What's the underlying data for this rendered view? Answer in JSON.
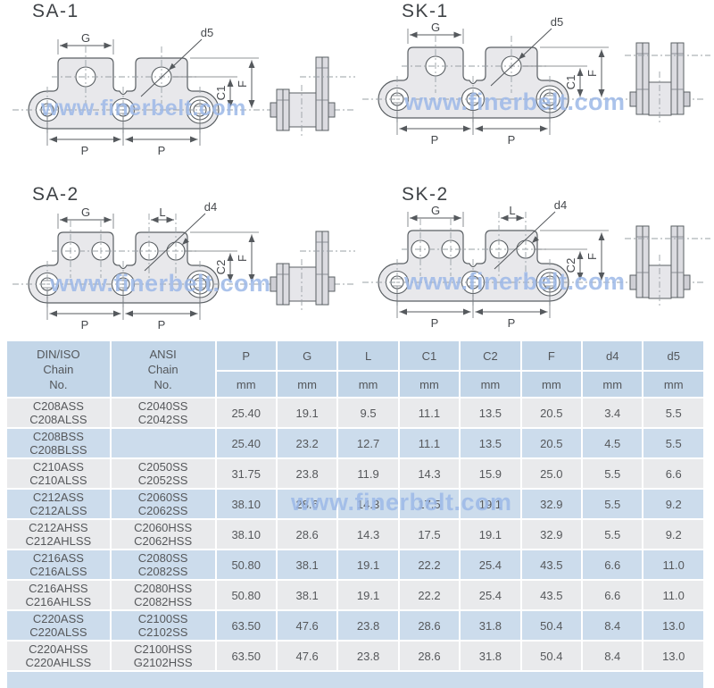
{
  "watermark": {
    "text": "www.finerbelt.com",
    "color": "#9db9e8"
  },
  "colors": {
    "header_bg": "#c3d6e8",
    "row_blue": "#ccdcec",
    "row_gray": "#e9eaec",
    "drawing_line": "#5a5f63",
    "plate_fill": "#e8e8eb"
  },
  "diagrams": [
    {
      "title": "SA-1",
      "labels": {
        "g": "G",
        "hole": "d5",
        "c": "C1",
        "f": "F",
        "p_left": "P",
        "p_right": "P"
      }
    },
    {
      "title": "SK-1",
      "labels": {
        "g": "G",
        "hole": "d5",
        "c": "C1",
        "f": "F",
        "p_left": "P",
        "p_right": "P"
      }
    },
    {
      "title": "SA-2",
      "labels": {
        "g": "G",
        "l": "L",
        "hole": "d4",
        "c": "C2",
        "f": "F",
        "p_left": "P",
        "p_right": "P"
      }
    },
    {
      "title": "SK-2",
      "labels": {
        "g": "G",
        "l": "L",
        "hole": "d4",
        "c": "C2",
        "f": "F",
        "p_left": "P",
        "p_right": "P"
      }
    }
  ],
  "table": {
    "header": {
      "din_iso": [
        "DIN/ISO",
        "Chain",
        "No."
      ],
      "ansi": [
        "ANSI",
        "Chain",
        "No."
      ],
      "dims": [
        "P",
        "G",
        "L",
        "C1",
        "C2",
        "F",
        "d4",
        "d5"
      ],
      "unit": "mm"
    },
    "rows": [
      {
        "din": [
          "C208ASS",
          "C208ALSS"
        ],
        "ansi": [
          "C2040SS",
          "C2042SS"
        ],
        "values": [
          "25.40",
          "19.1",
          "9.5",
          "11.1",
          "13.5",
          "20.5",
          "3.4",
          "5.5"
        ]
      },
      {
        "din": [
          "C208BSS",
          "C208BLSS"
        ],
        "ansi": [],
        "values": [
          "25.40",
          "23.2",
          "12.7",
          "11.1",
          "13.5",
          "20.5",
          "4.5",
          "5.5"
        ]
      },
      {
        "din": [
          "C210ASS",
          "C210ALSS"
        ],
        "ansi": [
          "C2050SS",
          "C2052SS"
        ],
        "values": [
          "31.75",
          "23.8",
          "11.9",
          "14.3",
          "15.9",
          "25.0",
          "5.5",
          "6.6"
        ]
      },
      {
        "din": [
          "C212ASS",
          "C212ALSS"
        ],
        "ansi": [
          "C2060SS",
          "C2062SS"
        ],
        "values": [
          "38.10",
          "28.6",
          "14.3",
          "17.5",
          "19.1",
          "32.9",
          "5.5",
          "9.2"
        ]
      },
      {
        "din": [
          "C212AHSS",
          "C212AHLSS"
        ],
        "ansi": [
          "C2060HSS",
          "C2062HSS"
        ],
        "values": [
          "38.10",
          "28.6",
          "14.3",
          "17.5",
          "19.1",
          "32.9",
          "5.5",
          "9.2"
        ]
      },
      {
        "din": [
          "C216ASS",
          "C216ALSS"
        ],
        "ansi": [
          "C2080SS",
          "C2082SS"
        ],
        "values": [
          "50.80",
          "38.1",
          "19.1",
          "22.2",
          "25.4",
          "43.5",
          "6.6",
          "11.0"
        ]
      },
      {
        "din": [
          "C216AHSS",
          "C216AHLSS"
        ],
        "ansi": [
          "C2080HSS",
          "C2082HSS"
        ],
        "values": [
          "50.80",
          "38.1",
          "19.1",
          "22.2",
          "25.4",
          "43.5",
          "6.6",
          "11.0"
        ]
      },
      {
        "din": [
          "C220ASS",
          "C220ALSS"
        ],
        "ansi": [
          "C2100SS",
          "C2102SS"
        ],
        "values": [
          "63.50",
          "47.6",
          "23.8",
          "28.6",
          "31.8",
          "50.4",
          "8.4",
          "13.0"
        ]
      },
      {
        "din": [
          "C220AHSS",
          "C220AHLSS"
        ],
        "ansi": [
          "C2100HSS",
          "G2102HSS"
        ],
        "values": [
          "63.50",
          "47.6",
          "23.8",
          "28.6",
          "31.8",
          "50.4",
          "8.4",
          "13.0"
        ]
      }
    ]
  }
}
